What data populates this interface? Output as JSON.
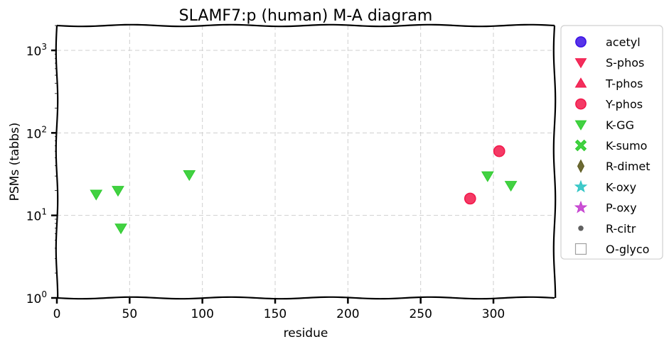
{
  "chart_data": {
    "type": "scatter",
    "title": "SLAMF7:p (human) M-A diagram",
    "xlabel": "residue",
    "ylabel": "PSMs (tabbs)",
    "xlim": [
      0,
      342
    ],
    "ylim": [
      1,
      2000
    ],
    "yscale": "log",
    "grid": true,
    "legend_position": "outside-right",
    "x_ticks": [
      "0",
      "50",
      "100",
      "150",
      "200",
      "250",
      "300"
    ],
    "x_tick_values": [
      0,
      50,
      100,
      150,
      200,
      250,
      300
    ],
    "y_ticks": [
      {
        "base": "10",
        "exp": "0",
        "value": 1
      },
      {
        "base": "10",
        "exp": "1",
        "value": 10
      },
      {
        "base": "10",
        "exp": "2",
        "value": 100
      },
      {
        "base": "10",
        "exp": "3",
        "value": 1000
      }
    ],
    "series": [
      {
        "name": "acetyl",
        "marker": "circle",
        "color": "#3a10e5",
        "points": []
      },
      {
        "name": "S-phos",
        "marker": "triangle-down",
        "color": "#f2174a",
        "points": []
      },
      {
        "name": "T-phos",
        "marker": "triangle-up",
        "color": "#f2174a",
        "points": []
      },
      {
        "name": "Y-phos",
        "marker": "circle",
        "color": "#f2174a",
        "points": [
          [
            284,
            16
          ],
          [
            304,
            60
          ]
        ]
      },
      {
        "name": "K-GG",
        "marker": "triangle-down",
        "color": "#2ecc2e",
        "points": [
          [
            27,
            18
          ],
          [
            42,
            20
          ],
          [
            44,
            7
          ],
          [
            91,
            31
          ],
          [
            296,
            30
          ],
          [
            312,
            23
          ]
        ]
      },
      {
        "name": "K-sumo",
        "marker": "x",
        "color": "#2ecc2e",
        "points": []
      },
      {
        "name": "R-dimet",
        "marker": "diamond",
        "color": "#5c5a1e",
        "points": []
      },
      {
        "name": "K-oxy",
        "marker": "star",
        "color": "#2ec4c4",
        "points": []
      },
      {
        "name": "P-oxy",
        "marker": "star",
        "color": "#c43ecf",
        "points": []
      },
      {
        "name": "R-citr",
        "marker": "small-circle",
        "color": "#606060",
        "points": []
      },
      {
        "name": "O-glyco",
        "marker": "square-open",
        "color": "#a0a0a0",
        "points": []
      }
    ]
  }
}
